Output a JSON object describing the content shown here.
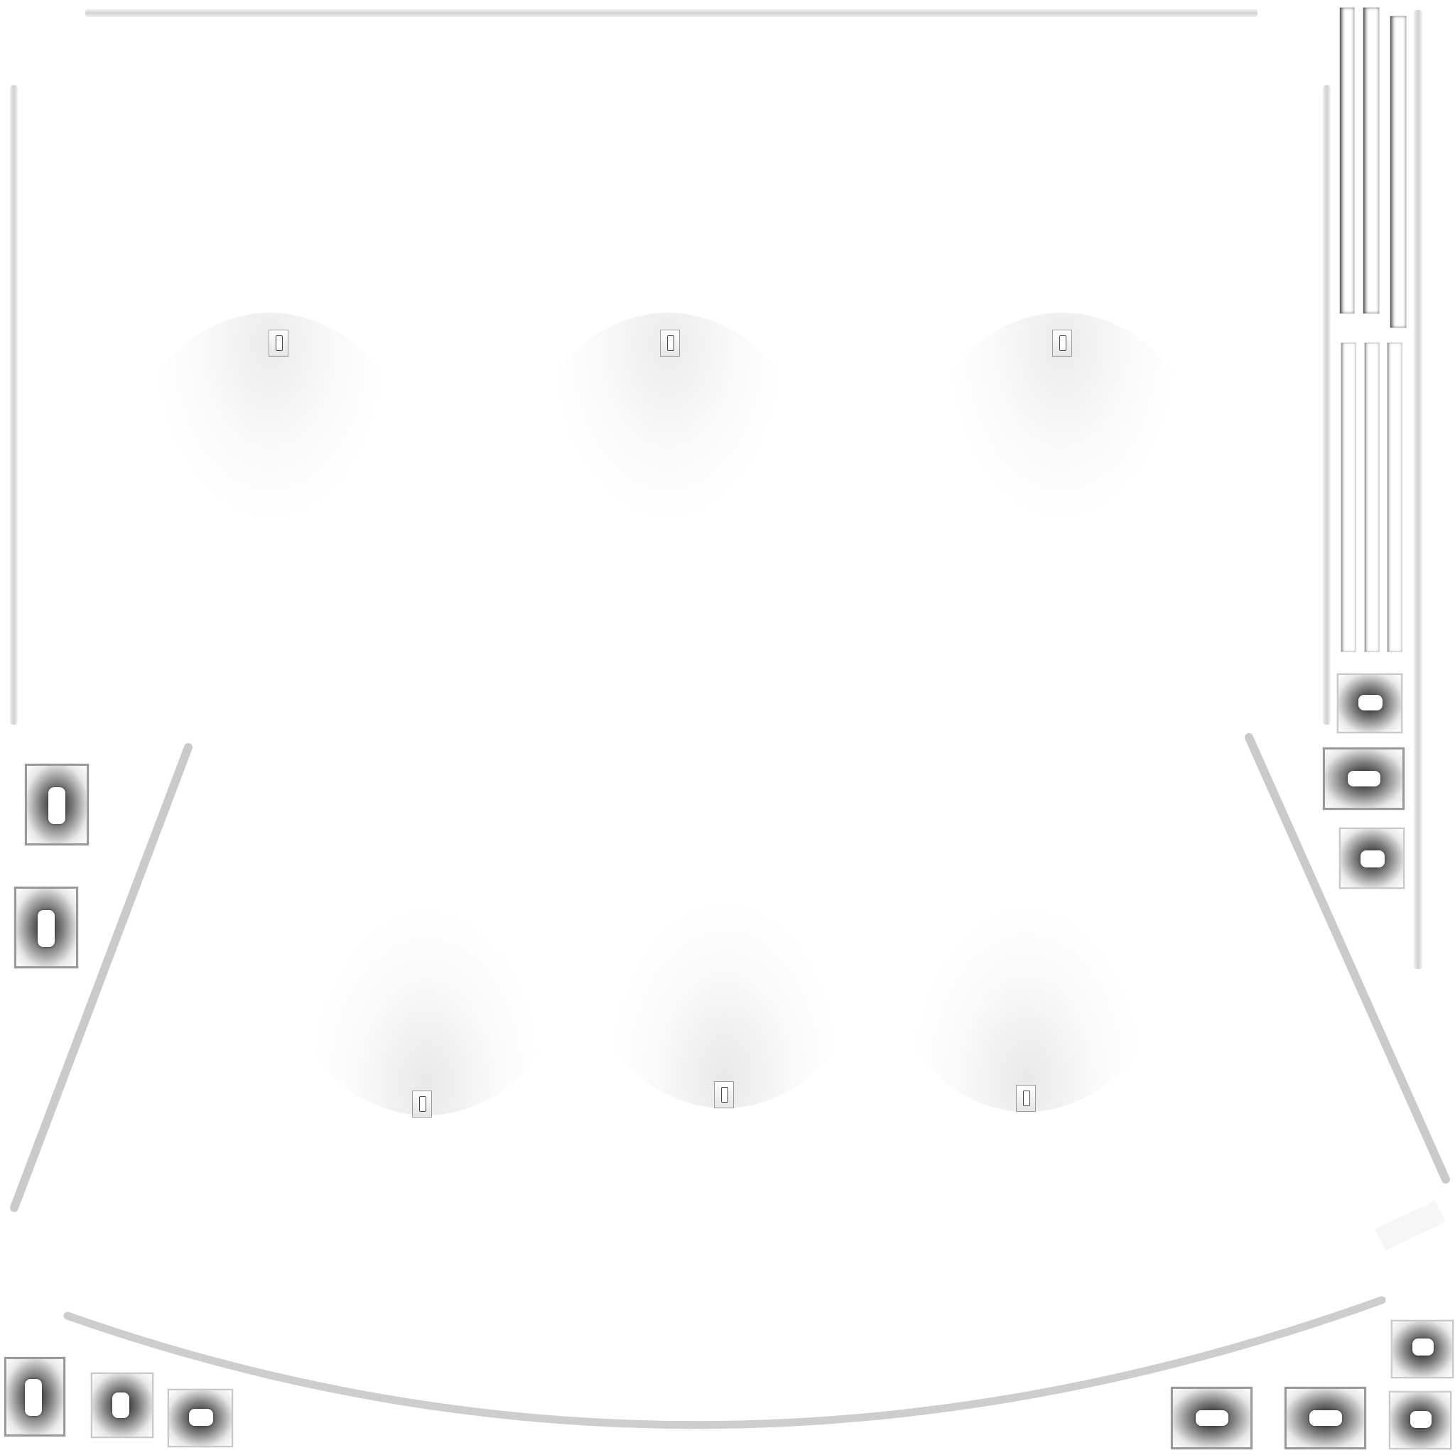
{
  "canvas": {
    "background": "#ffffff",
    "stroke_color": "#d0d0d0",
    "shadow_color": "#1a1a1a"
  }
}
